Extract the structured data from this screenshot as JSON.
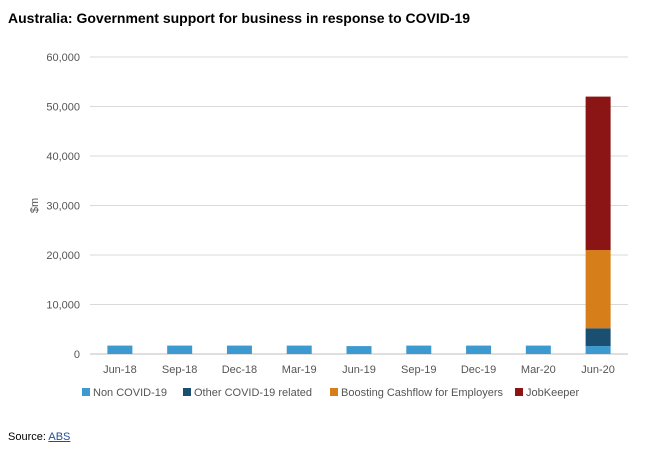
{
  "title": "Australia: Government support for business in response to COVID-19",
  "source": {
    "label": "Source: ",
    "link_text": "ABS"
  },
  "chart_data": {
    "type": "bar",
    "stacked": true,
    "categories": [
      "Jun-18",
      "Sep-18",
      "Dec-18",
      "Mar-19",
      "Jun-19",
      "Sep-19",
      "Dec-19",
      "Mar-20",
      "Jun-20"
    ],
    "series": [
      {
        "name": "Non COVID-19",
        "color": "#3d9ad1",
        "values": [
          1700,
          1700,
          1700,
          1700,
          1600,
          1700,
          1700,
          1700,
          1600
        ]
      },
      {
        "name": "Other COVID-19 related",
        "color": "#1b4f72",
        "values": [
          0,
          0,
          0,
          0,
          0,
          0,
          0,
          0,
          3600
        ]
      },
      {
        "name": "Boosting Cashflow for Employers",
        "color": "#d67f1a",
        "values": [
          0,
          0,
          0,
          0,
          0,
          0,
          0,
          0,
          15800
        ]
      },
      {
        "name": "JobKeeper",
        "color": "#8b1414",
        "values": [
          0,
          0,
          0,
          0,
          0,
          0,
          0,
          0,
          31000
        ]
      }
    ],
    "ylabel": "$m",
    "xlabel": "",
    "ylim": [
      0,
      60000
    ],
    "yticks": [
      0,
      10000,
      20000,
      30000,
      40000,
      50000,
      60000
    ],
    "ytick_labels": [
      "0",
      "10,000",
      "20,000",
      "30,000",
      "40,000",
      "50,000",
      "60,000"
    ],
    "grid": true,
    "legend_position": "bottom"
  }
}
